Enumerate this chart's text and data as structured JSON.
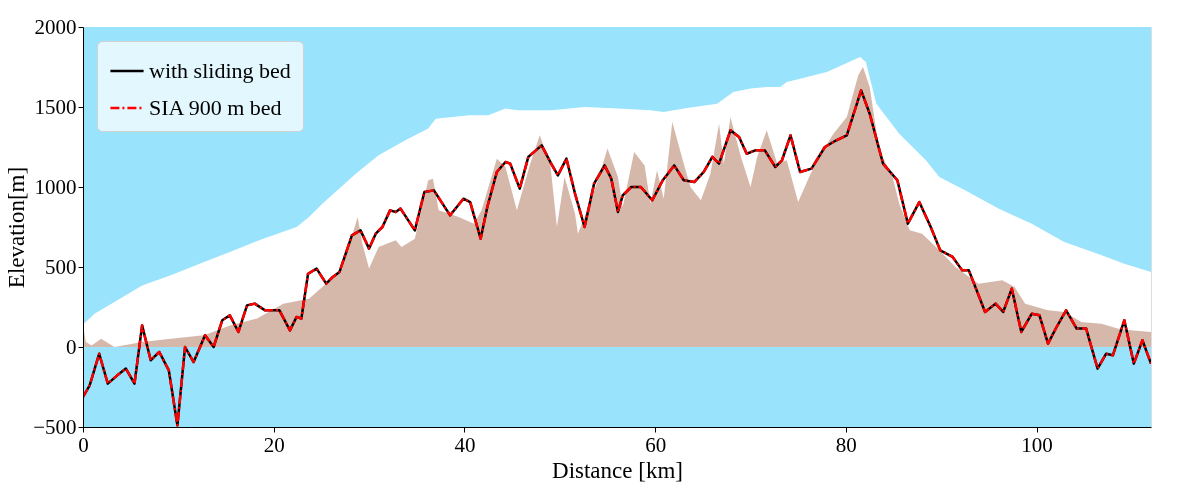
{
  "chart_data": {
    "type": "line",
    "xlabel": "Distance [km]",
    "ylabel": "Elevation[m]",
    "xlim": [
      0,
      112
    ],
    "ylim": [
      -500,
      2000
    ],
    "xticks": [
      0,
      20,
      40,
      60,
      80,
      100
    ],
    "yticks": [
      -500,
      0,
      500,
      1000,
      1500,
      2000
    ],
    "grid": false,
    "legend": "top left",
    "bands": [
      {
        "axis": "y",
        "from": -500,
        "to": 2000,
        "color": "#99e3fc"
      }
    ],
    "series": [
      {
        "type": "area",
        "color": "#ffffff",
        "x": [
          0,
          0.3,
          1.2,
          3.3,
          6.2,
          9.2,
          12.7,
          15.4,
          18.9,
          22.4,
          23.7,
          25.1,
          28.6,
          31.0,
          33.8,
          36.2,
          37.0,
          40.5,
          42.5,
          44.3,
          45.7,
          49.1,
          52.6,
          56.1,
          59.5,
          60.9,
          63.0,
          66.5,
          68.2,
          70.0,
          71.7,
          73.1,
          73.8,
          75.2,
          78.0,
          81.5,
          82.1,
          83.2,
          85.6,
          88.4,
          89.8,
          92.5,
          96.0,
          99.5,
          102.9,
          106.4,
          109.2,
          112
        ],
        "values": [
          146,
          156,
          208,
          281,
          385,
          448,
          531,
          594,
          677,
          750,
          813,
          896,
          1083,
          1198,
          1292,
          1365,
          1427,
          1448,
          1448,
          1490,
          1479,
          1479,
          1500,
          1490,
          1479,
          1469,
          1490,
          1521,
          1594,
          1615,
          1625,
          1625,
          1656,
          1677,
          1719,
          1813,
          1781,
          1521,
          1333,
          1167,
          1063,
          979,
          865,
          771,
          656,
          583,
          521,
          469
        ]
      },
      {
        "type": "area",
        "color": "#d6b8ab",
        "x": [
          0,
          0.3,
          0.9,
          1.9,
          3.3,
          6.2,
          9.2,
          12.7,
          15.4,
          18.2,
          21.0,
          23.7,
          25.1,
          27.2,
          28.8,
          29.3,
          30.0,
          31.0,
          32.8,
          33.4,
          34.8,
          36.2,
          36.7,
          37.3,
          39.4,
          41.0,
          41.8,
          43.4,
          44.3,
          45.5,
          46.9,
          47.9,
          49.0,
          49.7,
          50.5,
          51.6,
          51.9,
          52.6,
          54.0,
          55.0,
          56.1,
          56.6,
          57.8,
          58.9,
          59.5,
          60.2,
          60.9,
          61.8,
          63.0,
          63.7,
          64.8,
          65.8,
          66.7,
          67.2,
          67.9,
          69.0,
          70.0,
          70.7,
          71.7,
          72.8,
          73.8,
          75.0,
          76.3,
          77.6,
          78.7,
          80.1,
          81.3,
          81.8,
          82.5,
          83.5,
          84.9,
          85.6,
          86.7,
          88.0,
          89.8,
          91.5,
          93.9,
          96.4,
          97.7,
          98.8,
          101.2,
          102.9,
          104.7,
          106.8,
          108.5,
          109.9,
          112
        ],
        "values": [
          135,
          31,
          10,
          52,
          0,
          31,
          52,
          73,
          135,
          177,
          271,
          302,
          375,
          490,
          813,
          646,
          490,
          625,
          667,
          625,
          677,
          1042,
          1052,
          854,
          813,
          771,
          854,
          1177,
          1125,
          854,
          1146,
          1323,
          1146,
          750,
          1063,
          833,
          708,
          813,
          1042,
          1240,
          1063,
          875,
          1219,
          1135,
          896,
          1104,
          927,
          1406,
          1146,
          1000,
          917,
          1083,
          1396,
          1146,
          1438,
          1188,
          1000,
          1188,
          1354,
          1146,
          1167,
          906,
          1083,
          1229,
          1333,
          1438,
          1698,
          1750,
          1625,
          1229,
          1063,
          896,
          729,
          708,
          604,
          500,
          396,
          417,
          375,
          271,
          229,
          219,
          156,
          146,
          115,
          104,
          94
        ]
      },
      {
        "name": "with sliding bed",
        "color": "#000000",
        "line_style": "solid",
        "x": [
          0,
          0.7,
          1.7,
          2.6,
          3.6,
          4.5,
          5.4,
          6.2,
          7.1,
          8.0,
          9.0,
          9.9,
          10.7,
          11.6,
          12.8,
          13.7,
          14.6,
          15.4,
          16.3,
          17.2,
          18.0,
          19.1,
          20.6,
          21.7,
          22.4,
          22.9,
          23.6,
          24.5,
          25.5,
          26.2,
          26.9,
          28.2,
          29.1,
          30.0,
          30.7,
          31.4,
          32.2,
          32.8,
          33.3,
          34.8,
          35.8,
          36.8,
          37.7,
          38.5,
          39.9,
          40.6,
          41.7,
          42.4,
          43.4,
          44.3,
          44.8,
          45.8,
          46.7,
          48.1,
          49.1,
          49.8,
          50.7,
          51.6,
          52.6,
          53.6,
          54.7,
          55.4,
          56.1,
          56.6,
          57.5,
          58.5,
          59.7,
          60.8,
          62.0,
          63.0,
          64.1,
          65.1,
          66.0,
          66.7,
          67.9,
          68.8,
          69.6,
          70.5,
          71.5,
          72.6,
          73.3,
          74.2,
          75.2,
          76.4,
          77.8,
          79.0,
          80.1,
          81.6,
          82.5,
          83.9,
          85.4,
          86.5,
          87.7,
          88.9,
          89.9,
          91.2,
          92.2,
          92.9,
          94.6,
          95.7,
          96.5,
          97.4,
          98.4,
          99.5,
          100.3,
          101.2,
          102.1,
          103.1,
          104.2,
          105.2,
          106.4,
          107.3,
          108.0,
          109.2,
          110.2,
          111.1,
          112
        ],
        "values": [
          -312,
          -240,
          -42,
          -229,
          -177,
          -135,
          -229,
          135,
          -83,
          -31,
          -146,
          -490,
          0,
          -94,
          73,
          0,
          167,
          198,
          94,
          260,
          271,
          229,
          229,
          104,
          188,
          177,
          458,
          490,
          396,
          438,
          469,
          698,
          729,
          615,
          708,
          750,
          854,
          844,
          865,
          729,
          969,
          979,
          896,
          823,
          927,
          906,
          677,
          875,
          1094,
          1156,
          1146,
          990,
          1188,
          1260,
          1146,
          1073,
          1177,
          958,
          750,
          1021,
          1135,
          1052,
          844,
          948,
          1000,
          1000,
          917,
          1042,
          1135,
          1042,
          1031,
          1094,
          1188,
          1146,
          1354,
          1313,
          1208,
          1229,
          1229,
          1125,
          1167,
          1323,
          1094,
          1115,
          1250,
          1292,
          1323,
          1604,
          1458,
          1146,
          1042,
          771,
          906,
          750,
          604,
          563,
          479,
          479,
          219,
          271,
          219,
          365,
          94,
          208,
          198,
          21,
          125,
          229,
          115,
          115,
          -135,
          -42,
          -52,
          167,
          -104,
          42,
          -104
        ]
      },
      {
        "name": "SIA 900 m bed",
        "color": "#ff0000",
        "line_style": "dashed",
        "x": [
          0,
          0.7,
          1.7,
          2.6,
          3.6,
          4.5,
          5.4,
          6.2,
          7.1,
          8.0,
          9.0,
          9.9,
          10.7,
          11.6,
          12.8,
          13.7,
          14.6,
          15.4,
          16.3,
          17.2,
          18.0,
          19.1,
          20.6,
          21.7,
          22.4,
          22.9,
          23.6,
          24.5,
          25.5,
          26.2,
          26.9,
          28.2,
          29.1,
          30.0,
          30.7,
          31.4,
          32.2,
          32.8,
          33.3,
          34.8,
          35.8,
          36.8,
          37.7,
          38.5,
          39.9,
          40.6,
          41.7,
          42.4,
          43.4,
          44.3,
          44.8,
          45.8,
          46.7,
          48.1,
          49.1,
          49.8,
          50.7,
          51.6,
          52.6,
          53.6,
          54.7,
          55.4,
          56.1,
          56.6,
          57.5,
          58.5,
          59.7,
          60.8,
          62.0,
          63.0,
          64.1,
          65.1,
          66.0,
          66.7,
          67.9,
          68.8,
          69.6,
          70.5,
          71.5,
          72.6,
          73.3,
          74.2,
          75.2,
          76.4,
          77.8,
          79.0,
          80.1,
          81.6,
          82.5,
          83.9,
          85.4,
          86.5,
          87.7,
          88.9,
          89.9,
          91.2,
          92.2,
          92.9,
          94.6,
          95.7,
          96.5,
          97.4,
          98.4,
          99.5,
          100.3,
          101.2,
          102.1,
          103.1,
          104.2,
          105.2,
          106.4,
          107.3,
          108.0,
          109.2,
          110.2,
          111.1,
          112
        ],
        "values": [
          -312,
          -240,
          -42,
          -229,
          -177,
          -135,
          -229,
          135,
          -83,
          -31,
          -146,
          -490,
          0,
          -94,
          73,
          0,
          167,
          198,
          94,
          260,
          271,
          229,
          229,
          104,
          188,
          177,
          458,
          490,
          396,
          438,
          469,
          698,
          729,
          615,
          708,
          750,
          854,
          844,
          865,
          729,
          969,
          979,
          896,
          823,
          927,
          906,
          677,
          875,
          1094,
          1156,
          1146,
          990,
          1188,
          1260,
          1146,
          1073,
          1177,
          958,
          750,
          1021,
          1135,
          1052,
          844,
          948,
          1000,
          1000,
          917,
          1042,
          1135,
          1042,
          1031,
          1094,
          1188,
          1146,
          1354,
          1313,
          1208,
          1229,
          1229,
          1125,
          1167,
          1323,
          1094,
          1115,
          1250,
          1292,
          1323,
          1604,
          1458,
          1146,
          1042,
          771,
          906,
          750,
          604,
          563,
          479,
          479,
          219,
          271,
          219,
          365,
          94,
          208,
          198,
          21,
          125,
          229,
          115,
          115,
          -135,
          -42,
          -52,
          167,
          -104,
          42,
          -104
        ]
      }
    ]
  }
}
